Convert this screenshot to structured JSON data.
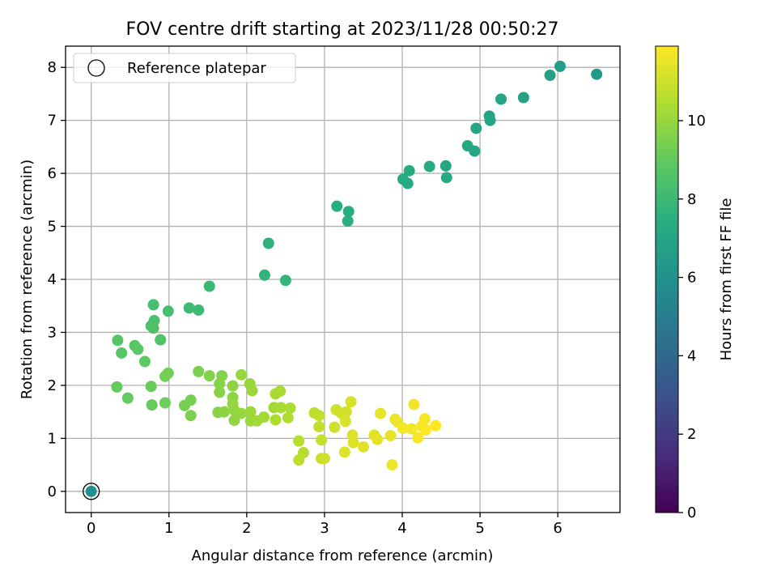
{
  "chart_data": {
    "type": "scatter",
    "title": "FOV centre drift starting at 2023/11/28 00:50:27",
    "xlabel": "Angular distance from reference (arcmin)",
    "ylabel": "Rotation from reference (arcmin)",
    "xlim": [
      -0.33,
      6.8
    ],
    "ylim": [
      -0.4,
      8.4
    ],
    "xticks": [
      "0",
      "1",
      "2",
      "3",
      "4",
      "5",
      "6"
    ],
    "yticks": [
      "0",
      "1",
      "2",
      "3",
      "4",
      "5",
      "6",
      "7",
      "8"
    ],
    "grid": true,
    "legend": {
      "position": "top-left",
      "entries": [
        "Reference platepar"
      ]
    },
    "reference_point": {
      "x": 0,
      "y": 0,
      "hour": 5.9
    },
    "colorbar": {
      "label": "Hours from first FF file",
      "range": [
        0,
        11.9
      ],
      "ticks": [
        "0",
        "2",
        "4",
        "6",
        "8",
        "10"
      ],
      "colormap": "viridis"
    },
    "points": [
      [
        0.0,
        0.0,
        5.9
      ],
      [
        6.5,
        7.87,
        6.4
      ],
      [
        6.03,
        8.02,
        6.6
      ],
      [
        5.9,
        7.85,
        6.7
      ],
      [
        5.56,
        7.43,
        6.8
      ],
      [
        5.27,
        7.4,
        6.9
      ],
      [
        5.12,
        7.08,
        6.9
      ],
      [
        5.13,
        7.0,
        7.0
      ],
      [
        4.95,
        6.85,
        7.0
      ],
      [
        4.93,
        6.42,
        7.0
      ],
      [
        4.84,
        6.52,
        7.1
      ],
      [
        4.56,
        6.14,
        7.1
      ],
      [
        4.57,
        5.92,
        7.2
      ],
      [
        4.35,
        6.13,
        7.2
      ],
      [
        4.09,
        6.05,
        7.2
      ],
      [
        4.01,
        5.89,
        7.3
      ],
      [
        4.07,
        5.81,
        7.3
      ],
      [
        3.31,
        5.28,
        7.4
      ],
      [
        3.16,
        5.38,
        7.4
      ],
      [
        3.3,
        5.1,
        7.5
      ],
      [
        2.28,
        4.68,
        7.6
      ],
      [
        2.23,
        4.08,
        7.7
      ],
      [
        2.5,
        3.98,
        7.8
      ],
      [
        1.52,
        3.87,
        8.0
      ],
      [
        1.26,
        3.46,
        8.1
      ],
      [
        1.38,
        3.42,
        8.1
      ],
      [
        0.8,
        3.52,
        8.3
      ],
      [
        0.99,
        3.4,
        8.3
      ],
      [
        0.81,
        3.22,
        8.4
      ],
      [
        0.77,
        3.12,
        8.4
      ],
      [
        0.8,
        3.08,
        8.5
      ],
      [
        0.89,
        2.86,
        8.6
      ],
      [
        0.34,
        2.85,
        8.7
      ],
      [
        0.56,
        2.75,
        8.7
      ],
      [
        0.6,
        2.68,
        8.8
      ],
      [
        0.39,
        2.61,
        8.8
      ],
      [
        0.69,
        2.45,
        8.9
      ],
      [
        0.33,
        1.97,
        9.0
      ],
      [
        0.47,
        1.76,
        9.0
      ],
      [
        0.77,
        1.98,
        9.1
      ],
      [
        0.78,
        1.63,
        9.1
      ],
      [
        0.95,
        1.67,
        9.2
      ],
      [
        0.95,
        2.17,
        9.3
      ],
      [
        0.99,
        2.23,
        9.3
      ],
      [
        1.2,
        1.62,
        9.4
      ],
      [
        1.28,
        1.72,
        9.4
      ],
      [
        1.28,
        1.43,
        9.5
      ],
      [
        1.38,
        2.26,
        9.5
      ],
      [
        1.52,
        2.18,
        9.6
      ],
      [
        1.68,
        2.18,
        9.6
      ],
      [
        1.65,
        2.03,
        9.7
      ],
      [
        1.65,
        1.87,
        9.7
      ],
      [
        1.63,
        1.49,
        9.7
      ],
      [
        1.71,
        1.5,
        9.8
      ],
      [
        1.82,
        1.99,
        9.8
      ],
      [
        1.82,
        1.77,
        9.8
      ],
      [
        1.82,
        1.65,
        9.9
      ],
      [
        1.84,
        1.53,
        9.9
      ],
      [
        1.84,
        1.34,
        9.9
      ],
      [
        1.93,
        2.2,
        10.0
      ],
      [
        1.93,
        1.47,
        10.0
      ],
      [
        2.04,
        2.03,
        10.0
      ],
      [
        2.07,
        1.9,
        10.1
      ],
      [
        2.05,
        1.5,
        10.1
      ],
      [
        2.05,
        1.33,
        10.1
      ],
      [
        2.13,
        1.33,
        10.2
      ],
      [
        2.22,
        1.4,
        10.2
      ],
      [
        2.35,
        1.58,
        10.2
      ],
      [
        2.37,
        1.84,
        10.3
      ],
      [
        2.43,
        1.89,
        10.3
      ],
      [
        2.44,
        1.58,
        10.3
      ],
      [
        2.37,
        1.35,
        10.4
      ],
      [
        2.56,
        1.57,
        10.4
      ],
      [
        2.53,
        1.39,
        10.5
      ],
      [
        2.67,
        0.95,
        10.6
      ],
      [
        2.73,
        0.73,
        10.6
      ],
      [
        2.67,
        0.59,
        10.7
      ],
      [
        2.87,
        1.48,
        10.7
      ],
      [
        2.93,
        1.43,
        10.8
      ],
      [
        2.93,
        1.22,
        10.8
      ],
      [
        2.96,
        0.97,
        10.9
      ],
      [
        2.96,
        0.62,
        10.9
      ],
      [
        3.0,
        0.62,
        11.0
      ],
      [
        3.15,
        1.54,
        11.0
      ],
      [
        3.13,
        1.21,
        11.0
      ],
      [
        3.22,
        1.47,
        11.1
      ],
      [
        3.28,
        1.5,
        11.1
      ],
      [
        3.27,
        1.32,
        11.2
      ],
      [
        3.34,
        1.69,
        11.2
      ],
      [
        3.36,
        1.06,
        11.3
      ],
      [
        3.37,
        0.92,
        11.3
      ],
      [
        3.26,
        0.74,
        11.3
      ],
      [
        3.5,
        0.84,
        11.4
      ],
      [
        3.64,
        1.06,
        11.4
      ],
      [
        3.68,
        0.98,
        11.5
      ],
      [
        3.72,
        1.47,
        11.5
      ],
      [
        3.85,
        1.05,
        11.5
      ],
      [
        3.87,
        0.5,
        11.6
      ],
      [
        3.91,
        1.36,
        11.6
      ],
      [
        3.94,
        1.31,
        11.6
      ],
      [
        4.01,
        1.19,
        11.7
      ],
      [
        4.15,
        1.64,
        11.7
      ],
      [
        4.12,
        1.18,
        11.7
      ],
      [
        4.2,
        1.01,
        11.8
      ],
      [
        4.25,
        1.23,
        11.8
      ],
      [
        4.29,
        1.37,
        11.8
      ],
      [
        4.3,
        1.16,
        11.9
      ],
      [
        4.43,
        1.24,
        11.9
      ]
    ]
  }
}
